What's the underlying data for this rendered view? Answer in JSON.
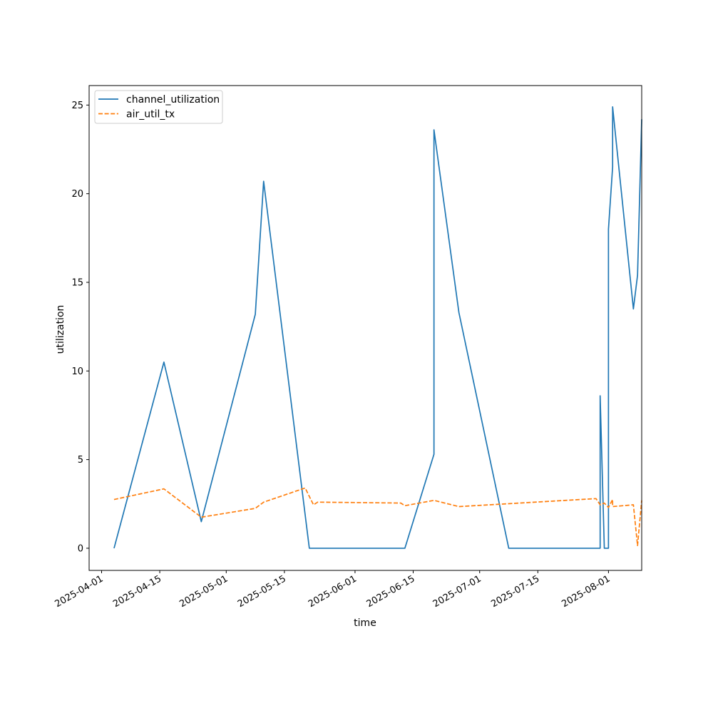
{
  "chart_data": {
    "type": "line",
    "xlabel": "time",
    "ylabel": "utilization",
    "x_type": "date",
    "xlim": [
      "2025-03-29",
      "2025-08-09"
    ],
    "ylim": [
      -1.25,
      26.1
    ],
    "y_ticks": [
      0,
      5,
      10,
      15,
      20,
      25
    ],
    "x_ticks": [
      "2025-04-01",
      "2025-04-15",
      "2025-05-01",
      "2025-05-15",
      "2025-06-01",
      "2025-06-15",
      "2025-07-01",
      "2025-07-15",
      "2025-08-01"
    ],
    "grid": false,
    "legend": "upper left",
    "series": [
      {
        "name": "channel_utilization",
        "color": "#1f77b4",
        "style": "solid",
        "points": [
          [
            "2025-04-04",
            0
          ],
          [
            "2025-04-16",
            10.5
          ],
          [
            "2025-04-25",
            1.5
          ],
          [
            "2025-05-08",
            13.2
          ],
          [
            "2025-05-10",
            20.7
          ],
          [
            "2025-05-21",
            0
          ],
          [
            "2025-06-13",
            0
          ],
          [
            "2025-06-20",
            5.3
          ],
          [
            "2025-06-20",
            23.6
          ],
          [
            "2025-06-26",
            13.3
          ],
          [
            "2025-07-08",
            0
          ],
          [
            "2025-07-30",
            0
          ],
          [
            "2025-07-30",
            8.6
          ],
          [
            "2025-07-31",
            0
          ],
          [
            "2025-08-01",
            0
          ],
          [
            "2025-08-01",
            18.0
          ],
          [
            "2025-08-02",
            21.5
          ],
          [
            "2025-08-02",
            24.9
          ],
          [
            "2025-08-07",
            13.5
          ],
          [
            "2025-08-08",
            15.4
          ],
          [
            "2025-08-09",
            24.2
          ]
        ]
      },
      {
        "name": "air_util_tx",
        "color": "#ff7f0e",
        "style": "dashed",
        "points": [
          [
            "2025-04-04",
            2.75
          ],
          [
            "2025-04-16",
            3.35
          ],
          [
            "2025-04-25",
            1.75
          ],
          [
            "2025-05-08",
            2.25
          ],
          [
            "2025-05-10",
            2.6
          ],
          [
            "2025-05-20",
            3.4
          ],
          [
            "2025-05-22",
            2.45
          ],
          [
            "2025-05-23",
            2.6
          ],
          [
            "2025-06-12",
            2.55
          ],
          [
            "2025-06-13",
            2.4
          ],
          [
            "2025-06-20",
            2.7
          ],
          [
            "2025-06-26",
            2.35
          ],
          [
            "2025-07-29",
            2.8
          ],
          [
            "2025-07-30",
            2.45
          ],
          [
            "2025-07-31",
            2.55
          ],
          [
            "2025-08-01",
            2.3
          ],
          [
            "2025-08-02",
            2.75
          ],
          [
            "2025-08-02",
            2.35
          ],
          [
            "2025-08-07",
            2.45
          ],
          [
            "2025-08-08",
            0.15
          ],
          [
            "2025-08-09",
            2.7
          ]
        ]
      }
    ]
  }
}
